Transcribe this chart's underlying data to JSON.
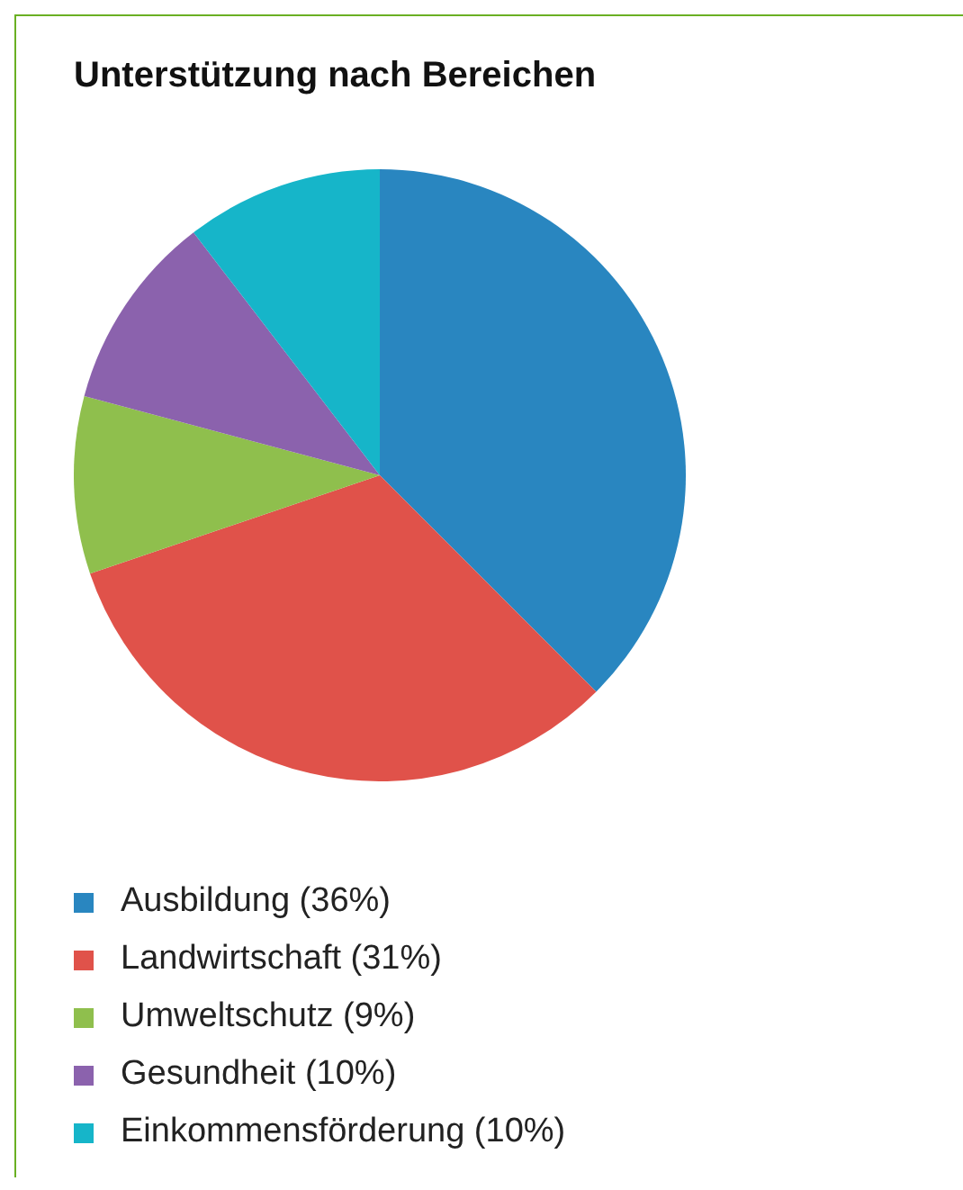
{
  "chart_data": {
    "type": "pie",
    "title": "Unterstützung nach Bereichen",
    "categories": [
      "Ausbildung (36%)",
      "Landwirtschaft (31%)",
      "Umweltschutz (9%)",
      "Gesundheit (10%)",
      "Einkommensförderung (10%)"
    ],
    "values": [
      36,
      31,
      9,
      10,
      10
    ],
    "colors": [
      "#2986c0",
      "#e0524a",
      "#8fbf4d",
      "#8b62ad",
      "#16b5c9"
    ],
    "legend": "bottom"
  }
}
